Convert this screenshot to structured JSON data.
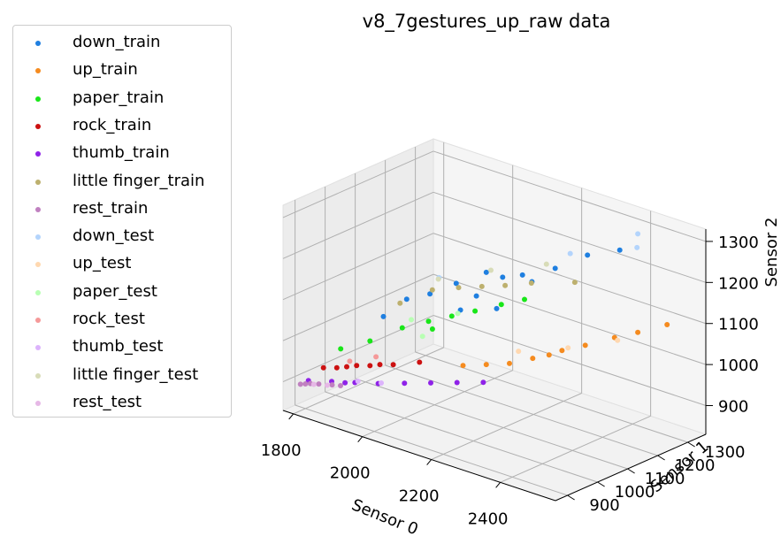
{
  "chart_data": {
    "type": "scatter",
    "title": "v8_7gestures_up_raw data",
    "xlabel": "Sensor 0",
    "ylabel": "Sensor 1",
    "zlabel": "Sensor 2",
    "xlim": [
      1770,
      2560
    ],
    "ylim": [
      860,
      1360
    ],
    "zlim": [
      830,
      1330
    ],
    "xticks": [
      "1800",
      "2000",
      "2200",
      "2400"
    ],
    "yticks": [
      "900",
      "1000",
      "1100",
      "1200",
      "1300"
    ],
    "zticks": [
      "900",
      "1000",
      "1100",
      "1200",
      "1300"
    ],
    "grid": true,
    "legend_position": "outside-left",
    "series": [
      {
        "name": "down_train",
        "color": "#1f7fe0",
        "points": [
          [
            2220,
            1020,
            1240
          ],
          [
            2250,
            1040,
            1230
          ],
          [
            2290,
            1060,
            1240
          ],
          [
            2350,
            1100,
            1260
          ],
          [
            2400,
            1150,
            1290
          ],
          [
            2450,
            1200,
            1300
          ],
          [
            2150,
            1000,
            1200
          ],
          [
            2100,
            970,
            1170
          ],
          [
            2050,
            950,
            1150
          ],
          [
            2300,
            1080,
            1220
          ],
          [
            2200,
            1010,
            1180
          ],
          [
            2180,
            980,
            1150
          ],
          [
            2000,
            930,
            1100
          ],
          [
            2250,
            1020,
            1160
          ]
        ]
      },
      {
        "name": "up_train",
        "color": "#f58b1f",
        "points": [
          [
            2250,
            1140,
            1000
          ],
          [
            2300,
            1180,
            1020
          ],
          [
            2350,
            1200,
            1040
          ],
          [
            2200,
            1120,
            980
          ],
          [
            2150,
            1100,
            970
          ],
          [
            2400,
            1240,
            1060
          ],
          [
            2450,
            1260,
            1080
          ],
          [
            2100,
            1080,
            960
          ],
          [
            2500,
            1300,
            1100
          ],
          [
            2280,
            1160,
            1010
          ]
        ]
      },
      {
        "name": "paper_train",
        "color": "#19e619",
        "points": [
          [
            1950,
            1050,
            1020
          ],
          [
            2000,
            1080,
            1040
          ],
          [
            2050,
            1100,
            1060
          ],
          [
            1900,
            1000,
            990
          ],
          [
            2100,
            1120,
            1080
          ],
          [
            2150,
            1150,
            1100
          ],
          [
            1850,
            960,
            970
          ],
          [
            2200,
            1170,
            1120
          ],
          [
            2020,
            1070,
            1030
          ]
        ]
      },
      {
        "name": "rock_train",
        "color": "#cc1111",
        "points": [
          [
            1850,
            980,
            920
          ],
          [
            1900,
            1000,
            930
          ],
          [
            1950,
            1020,
            940
          ],
          [
            1800,
            960,
            910
          ],
          [
            2000,
            1050,
            950
          ],
          [
            1870,
            990,
            925
          ],
          [
            1920,
            1010,
            935
          ],
          [
            1830,
            970,
            915
          ]
        ]
      },
      {
        "name": "thumb_train",
        "color": "#8f22e8",
        "points": [
          [
            1850,
            930,
            900
          ],
          [
            1900,
            950,
            905
          ],
          [
            1950,
            970,
            910
          ],
          [
            2000,
            1000,
            915
          ],
          [
            2050,
            1030,
            920
          ],
          [
            2100,
            1060,
            925
          ],
          [
            1800,
            910,
            895
          ],
          [
            2150,
            1090,
            930
          ],
          [
            1880,
            940,
            902
          ]
        ]
      },
      {
        "name": "little finger_train",
        "color": "#bdb06e",
        "points": [
          [
            1950,
            1150,
            1080
          ],
          [
            2050,
            1200,
            1100
          ],
          [
            2150,
            1250,
            1120
          ],
          [
            1900,
            1100,
            1050
          ],
          [
            2000,
            1180,
            1090
          ],
          [
            2100,
            1220,
            1110
          ],
          [
            2250,
            1280,
            1140
          ]
        ]
      },
      {
        "name": "rest_train",
        "color": "#c080c0",
        "points": [
          [
            1800,
            900,
            890
          ],
          [
            1830,
            910,
            895
          ],
          [
            1860,
            920,
            898
          ],
          [
            1790,
            895,
            888
          ],
          [
            1880,
            925,
            900
          ],
          [
            1810,
            905,
            892
          ]
        ]
      },
      {
        "name": "down_test",
        "color": "#b3d4fc",
        "points": [
          [
            2500,
            1200,
            1320
          ],
          [
            2350,
            1150,
            1280
          ],
          [
            2100,
            1000,
            1200
          ],
          [
            2450,
            1260,
            1320
          ]
        ]
      },
      {
        "name": "up_test",
        "color": "#ffd8b0",
        "points": [
          [
            2300,
            1200,
            1020
          ],
          [
            2200,
            1150,
            1000
          ],
          [
            2400,
            1250,
            1050
          ]
        ]
      },
      {
        "name": "paper_test",
        "color": "#b8ffb3",
        "points": [
          [
            1950,
            1080,
            1030
          ],
          [
            2050,
            1120,
            1060
          ],
          [
            2000,
            1060,
            1010
          ]
        ]
      },
      {
        "name": "rock_test",
        "color": "#f59999",
        "points": [
          [
            1900,
            1020,
            945
          ],
          [
            1850,
            990,
            930
          ]
        ]
      },
      {
        "name": "thumb_test",
        "color": "#dcb3fc",
        "points": [
          [
            1900,
            960,
            905
          ],
          [
            1950,
            980,
            908
          ]
        ]
      },
      {
        "name": "little finger_test",
        "color": "#d8dcb8",
        "points": [
          [
            1950,
            1170,
            1100
          ],
          [
            2050,
            1230,
            1130
          ],
          [
            2150,
            1300,
            1150
          ]
        ]
      },
      {
        "name": "rest_test",
        "color": "#e6b8e6",
        "points": [
          [
            1820,
            905,
            893
          ],
          [
            1850,
            915,
            896
          ]
        ]
      }
    ]
  }
}
